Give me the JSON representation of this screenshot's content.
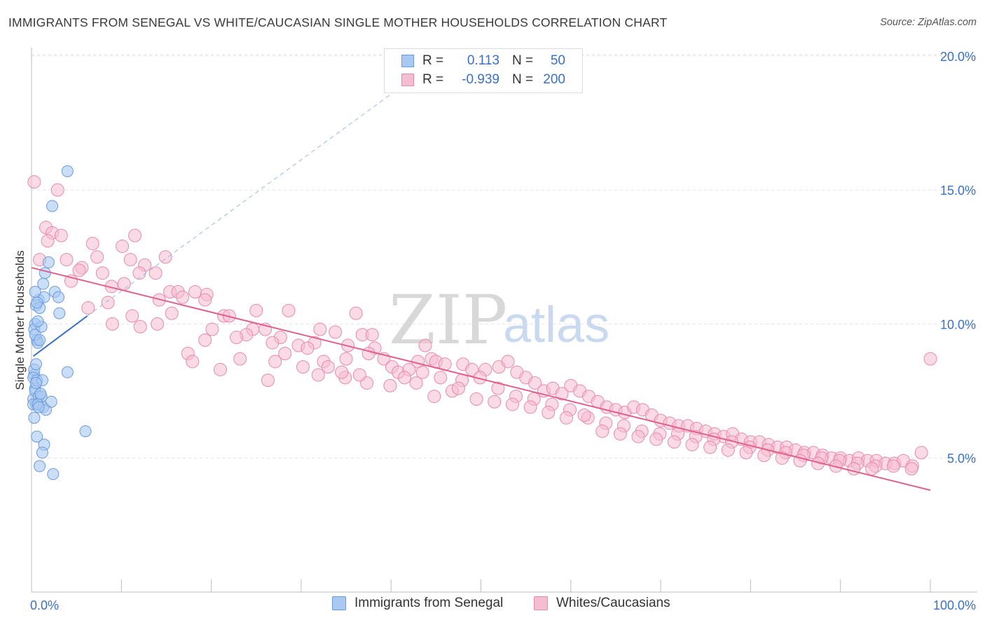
{
  "title": "IMMIGRANTS FROM SENEGAL VS WHITE/CAUCASIAN SINGLE MOTHER HOUSEHOLDS CORRELATION CHART",
  "source": "Source: ZipAtlas.com",
  "watermark": {
    "zip": "ZIP",
    "atlas": "atlas"
  },
  "legend": {
    "rows": [
      {
        "r_label": "R =",
        "r_value": "0.113",
        "n_label": "N =",
        "n_value": "50",
        "color": "#a9c8f2"
      },
      {
        "r_label": "R =",
        "r_value": "-0.939",
        "n_label": "N =",
        "n_value": "200",
        "color": "#f6bcd0"
      }
    ]
  },
  "bottom_legend": [
    {
      "label": "Immigrants from Senegal",
      "color": "#a9c8f2",
      "border": "#6a9be0"
    },
    {
      "label": "Whites/Caucasians",
      "color": "#f6bcd0",
      "border": "#e88aaa"
    }
  ],
  "chart_data": {
    "type": "scatter",
    "title": "IMMIGRANTS FROM SENEGAL VS WHITE/CAUCASIAN SINGLE MOTHER HOUSEHOLDS CORRELATION CHART",
    "xlabel": "",
    "ylabel": "Single Mother Households",
    "xlim": [
      0,
      100
    ],
    "ylim": [
      0,
      20.5
    ],
    "x_tick_labels": [
      "0.0%",
      "100.0%"
    ],
    "y_ticks": [
      5,
      10,
      15,
      20
    ],
    "y_tick_labels": [
      "5.0%",
      "10.0%",
      "15.0%",
      "20.0%"
    ],
    "grid": true,
    "colors": {
      "blue": "#6a9be0",
      "blue_fill": "#a9c8f2",
      "pink": "#e88aaa",
      "pink_fill": "#f6bcd0",
      "blue_line": "#3a70c8",
      "pink_line": "#e0608a",
      "axis_text": "#3a70c8"
    },
    "series": [
      {
        "name": "Immigrants from Senegal",
        "trend": {
          "x": [
            0.2,
            6.2
          ],
          "y": [
            8.8,
            10.3
          ],
          "dashed_to": [
            45,
            19.8
          ]
        },
        "points": [
          [
            0.3,
            8.1
          ],
          [
            0.4,
            7.6
          ],
          [
            0.2,
            7.2
          ],
          [
            0.5,
            7.0
          ],
          [
            0.6,
            9.4
          ],
          [
            0.8,
            10.9
          ],
          [
            0.5,
            10.7
          ],
          [
            0.4,
            10.0
          ],
          [
            0.3,
            9.8
          ],
          [
            0.7,
            9.3
          ],
          [
            0.4,
            9.6
          ],
          [
            1.1,
            9.9
          ],
          [
            1.3,
            11.5
          ],
          [
            1.4,
            11.0
          ],
          [
            1.5,
            11.9
          ],
          [
            1.9,
            12.3
          ],
          [
            2.3,
            14.4
          ],
          [
            4.0,
            15.7
          ],
          [
            2.6,
            11.2
          ],
          [
            3.0,
            11.0
          ],
          [
            3.1,
            10.4
          ],
          [
            0.9,
            10.6
          ],
          [
            0.6,
            10.8
          ],
          [
            0.7,
            10.1
          ],
          [
            0.3,
            8.3
          ],
          [
            0.2,
            8.0
          ],
          [
            0.6,
            7.9
          ],
          [
            1.2,
            7.9
          ],
          [
            0.4,
            7.5
          ],
          [
            0.8,
            7.3
          ],
          [
            1.1,
            7.3
          ],
          [
            0.2,
            7.0
          ],
          [
            1.3,
            6.9
          ],
          [
            0.7,
            7.0
          ],
          [
            1.6,
            6.8
          ],
          [
            2.2,
            7.1
          ],
          [
            4.0,
            8.2
          ],
          [
            0.3,
            6.5
          ],
          [
            0.6,
            5.8
          ],
          [
            1.4,
            5.5
          ],
          [
            1.2,
            5.2
          ],
          [
            0.9,
            4.7
          ],
          [
            2.4,
            4.4
          ],
          [
            6.0,
            6.0
          ],
          [
            0.4,
            11.2
          ],
          [
            0.9,
            9.4
          ],
          [
            0.5,
            8.5
          ],
          [
            0.5,
            7.8
          ],
          [
            0.8,
            6.9
          ],
          [
            1.0,
            7.4
          ]
        ]
      },
      {
        "name": "Whites/Caucasians",
        "trend": {
          "x": [
            0,
            100
          ],
          "y": [
            12.1,
            3.8
          ]
        },
        "points": [
          [
            0.3,
            15.3
          ],
          [
            2.9,
            15.0
          ],
          [
            1.6,
            13.6
          ],
          [
            2.3,
            13.4
          ],
          [
            1.8,
            13.1
          ],
          [
            3.3,
            13.3
          ],
          [
            11.5,
            13.3
          ],
          [
            6.8,
            13.0
          ],
          [
            10.1,
            12.9
          ],
          [
            14.9,
            12.5
          ],
          [
            0.9,
            12.4
          ],
          [
            3.9,
            12.4
          ],
          [
            7.3,
            12.5
          ],
          [
            11.0,
            12.4
          ],
          [
            5.6,
            12.1
          ],
          [
            5.3,
            12.0
          ],
          [
            7.9,
            11.9
          ],
          [
            12.6,
            12.2
          ],
          [
            12.0,
            11.9
          ],
          [
            13.8,
            11.9
          ],
          [
            4.4,
            11.6
          ],
          [
            8.9,
            11.4
          ],
          [
            10.3,
            11.5
          ],
          [
            15.4,
            11.2
          ],
          [
            16.3,
            11.2
          ],
          [
            18.2,
            11.2
          ],
          [
            19.5,
            11.1
          ],
          [
            16.8,
            11.0
          ],
          [
            19.3,
            10.9
          ],
          [
            6.3,
            10.6
          ],
          [
            8.5,
            10.8
          ],
          [
            15.6,
            10.4
          ],
          [
            11.2,
            10.3
          ],
          [
            21.4,
            10.3
          ],
          [
            22.0,
            10.3
          ],
          [
            25.0,
            10.5
          ],
          [
            28.6,
            10.5
          ],
          [
            36.1,
            10.4
          ],
          [
            9.0,
            10.0
          ],
          [
            12.1,
            9.9
          ],
          [
            14.0,
            10.0
          ],
          [
            20.1,
            9.8
          ],
          [
            24.6,
            9.8
          ],
          [
            26.0,
            9.8
          ],
          [
            23.9,
            9.6
          ],
          [
            32.1,
            9.8
          ],
          [
            33.8,
            9.7
          ],
          [
            36.8,
            9.6
          ],
          [
            27.7,
            9.5
          ],
          [
            22.8,
            9.5
          ],
          [
            37.9,
            9.6
          ],
          [
            31.5,
            9.3
          ],
          [
            35.2,
            9.2
          ],
          [
            29.7,
            9.2
          ],
          [
            38.2,
            9.1
          ],
          [
            19.3,
            9.4
          ],
          [
            26.8,
            9.3
          ],
          [
            30.7,
            9.1
          ],
          [
            43.8,
            9.2
          ],
          [
            37.5,
            8.9
          ],
          [
            35.0,
            8.7
          ],
          [
            32.5,
            8.6
          ],
          [
            39.2,
            8.7
          ],
          [
            28.2,
            8.9
          ],
          [
            17.4,
            8.9
          ],
          [
            17.9,
            8.6
          ],
          [
            23.2,
            8.7
          ],
          [
            27.1,
            8.6
          ],
          [
            30.2,
            8.4
          ],
          [
            33.0,
            8.4
          ],
          [
            40.1,
            8.4
          ],
          [
            40.8,
            8.2
          ],
          [
            42.0,
            8.3
          ],
          [
            43.0,
            8.6
          ],
          [
            44.5,
            8.7
          ],
          [
            45.0,
            8.6
          ],
          [
            46.0,
            8.5
          ],
          [
            48.0,
            8.5
          ],
          [
            49.0,
            8.3
          ],
          [
            50.5,
            8.3
          ],
          [
            52.0,
            8.4
          ],
          [
            53.0,
            8.6
          ],
          [
            54.0,
            8.2
          ],
          [
            55.0,
            8.0
          ],
          [
            56.0,
            7.8
          ],
          [
            57.0,
            7.5
          ],
          [
            58.0,
            7.6
          ],
          [
            59.0,
            7.4
          ],
          [
            60.0,
            7.7
          ],
          [
            61.0,
            7.5
          ],
          [
            62.0,
            7.3
          ],
          [
            63.0,
            7.1
          ],
          [
            64.0,
            6.9
          ],
          [
            65.0,
            6.8
          ],
          [
            66.0,
            6.7
          ],
          [
            67.0,
            6.9
          ],
          [
            68.0,
            6.8
          ],
          [
            69.0,
            6.6
          ],
          [
            70.0,
            6.4
          ],
          [
            71.0,
            6.3
          ],
          [
            72.0,
            6.2
          ],
          [
            73.0,
            6.2
          ],
          [
            74.0,
            6.1
          ],
          [
            75.0,
            6.0
          ],
          [
            76.0,
            5.9
          ],
          [
            77.0,
            5.8
          ],
          [
            78.0,
            5.9
          ],
          [
            79.0,
            5.7
          ],
          [
            80.0,
            5.6
          ],
          [
            81.0,
            5.6
          ],
          [
            82.0,
            5.5
          ],
          [
            83.0,
            5.4
          ],
          [
            84.0,
            5.4
          ],
          [
            85.0,
            5.3
          ],
          [
            86.0,
            5.2
          ],
          [
            87.0,
            5.2
          ],
          [
            88.0,
            5.1
          ],
          [
            89.0,
            5.0
          ],
          [
            90.0,
            5.0
          ],
          [
            91.0,
            4.9
          ],
          [
            92.0,
            5.0
          ],
          [
            93.0,
            4.9
          ],
          [
            94.0,
            4.9
          ],
          [
            95.0,
            4.8
          ],
          [
            96.0,
            4.8
          ],
          [
            97.0,
            4.9
          ],
          [
            98.0,
            4.7
          ],
          [
            99.0,
            5.2
          ],
          [
            100.0,
            8.7
          ],
          [
            14.2,
            10.9
          ],
          [
            21.0,
            8.3
          ],
          [
            26.3,
            7.9
          ],
          [
            31.9,
            8.1
          ],
          [
            34.9,
            8.0
          ],
          [
            37.3,
            7.8
          ],
          [
            39.9,
            7.7
          ],
          [
            42.8,
            7.8
          ],
          [
            44.8,
            7.3
          ],
          [
            46.8,
            7.5
          ],
          [
            47.9,
            7.9
          ],
          [
            49.9,
            8.0
          ],
          [
            51.9,
            7.6
          ],
          [
            53.9,
            7.3
          ],
          [
            55.9,
            7.2
          ],
          [
            57.9,
            7.0
          ],
          [
            59.9,
            6.8
          ],
          [
            61.9,
            6.5
          ],
          [
            63.9,
            6.3
          ],
          [
            65.9,
            6.2
          ],
          [
            67.9,
            6.0
          ],
          [
            69.9,
            5.9
          ],
          [
            71.9,
            5.9
          ],
          [
            73.9,
            5.8
          ],
          [
            75.9,
            5.7
          ],
          [
            77.9,
            5.6
          ],
          [
            79.9,
            5.4
          ],
          [
            81.9,
            5.3
          ],
          [
            83.9,
            5.2
          ],
          [
            85.9,
            5.1
          ],
          [
            87.9,
            5.0
          ],
          [
            89.9,
            4.9
          ],
          [
            91.9,
            4.8
          ],
          [
            93.9,
            4.7
          ],
          [
            95.9,
            4.7
          ],
          [
            97.9,
            4.6
          ],
          [
            34.5,
            8.2
          ],
          [
            36.5,
            8.1
          ],
          [
            41.5,
            8.0
          ],
          [
            43.5,
            8.2
          ],
          [
            45.5,
            8.0
          ],
          [
            47.5,
            7.6
          ],
          [
            49.5,
            7.2
          ],
          [
            51.5,
            7.1
          ],
          [
            53.5,
            7.0
          ],
          [
            55.5,
            6.9
          ],
          [
            57.5,
            6.7
          ],
          [
            59.5,
            6.5
          ],
          [
            61.5,
            6.6
          ],
          [
            63.5,
            6.0
          ],
          [
            65.5,
            5.9
          ],
          [
            67.5,
            5.8
          ],
          [
            69.5,
            5.7
          ],
          [
            71.5,
            5.6
          ],
          [
            73.5,
            5.5
          ],
          [
            75.5,
            5.4
          ],
          [
            77.5,
            5.3
          ],
          [
            79.5,
            5.2
          ],
          [
            81.5,
            5.1
          ],
          [
            83.5,
            5.0
          ],
          [
            85.5,
            4.9
          ],
          [
            87.5,
            4.8
          ],
          [
            89.5,
            4.7
          ],
          [
            91.5,
            4.6
          ],
          [
            93.5,
            4.6
          ]
        ]
      }
    ]
  }
}
